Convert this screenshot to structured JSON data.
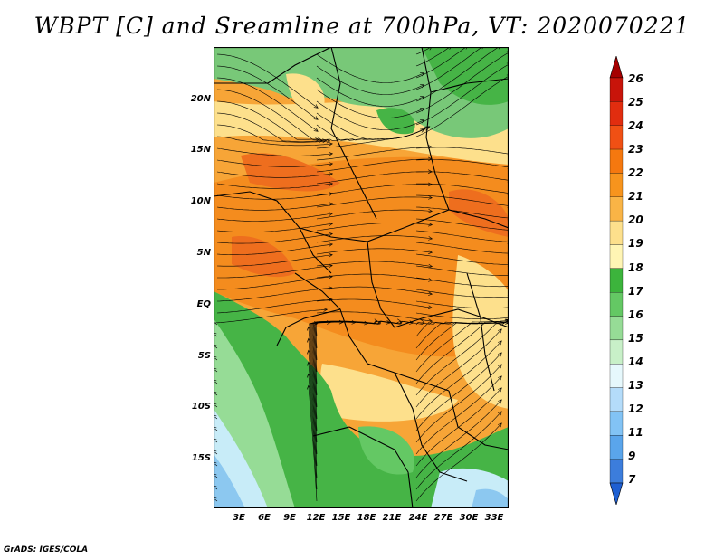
{
  "title": "WBPT [C] and Sreamline at 700hPa, VT: 2020070221",
  "credit": "GrADS: IGES/COLA",
  "map": {
    "lat_ticks": [
      "20N",
      "15N",
      "10N",
      "5N",
      "EQ",
      "5S",
      "10S",
      "15S"
    ],
    "lon_ticks": [
      "3E",
      "6E",
      "9E",
      "12E",
      "15E",
      "18E",
      "21E",
      "24E",
      "27E",
      "30E",
      "33E"
    ]
  },
  "colorbar": {
    "levels": [
      "26",
      "25",
      "24",
      "23",
      "22",
      "21",
      "20",
      "19",
      "18",
      "17",
      "16",
      "15",
      "14",
      "13",
      "12",
      "11",
      "9",
      "7"
    ],
    "colors": [
      "#a50000",
      "#c8140a",
      "#e12d0f",
      "#f05014",
      "#f5780f",
      "#f7941d",
      "#f9b446",
      "#fde08c",
      "#fff5b4",
      "#3cb43c",
      "#64c864",
      "#96dc96",
      "#c8f0c8",
      "#e6f8fc",
      "#b4dcfa",
      "#82c3f5",
      "#5aa5eb",
      "#3c7ddc",
      "#1e5fd2"
    ]
  },
  "fill_colors": {
    "green": "#46b446",
    "lightgreen": "#78c878",
    "paler": "#a8dca8",
    "yellow": "#fde08c",
    "orange": "#f7a537",
    "deep_orange": "#f48c1e",
    "red_orange": "#ee6e1e",
    "lightblue": "#c8ecf8",
    "blue": "#8cc8f0"
  }
}
